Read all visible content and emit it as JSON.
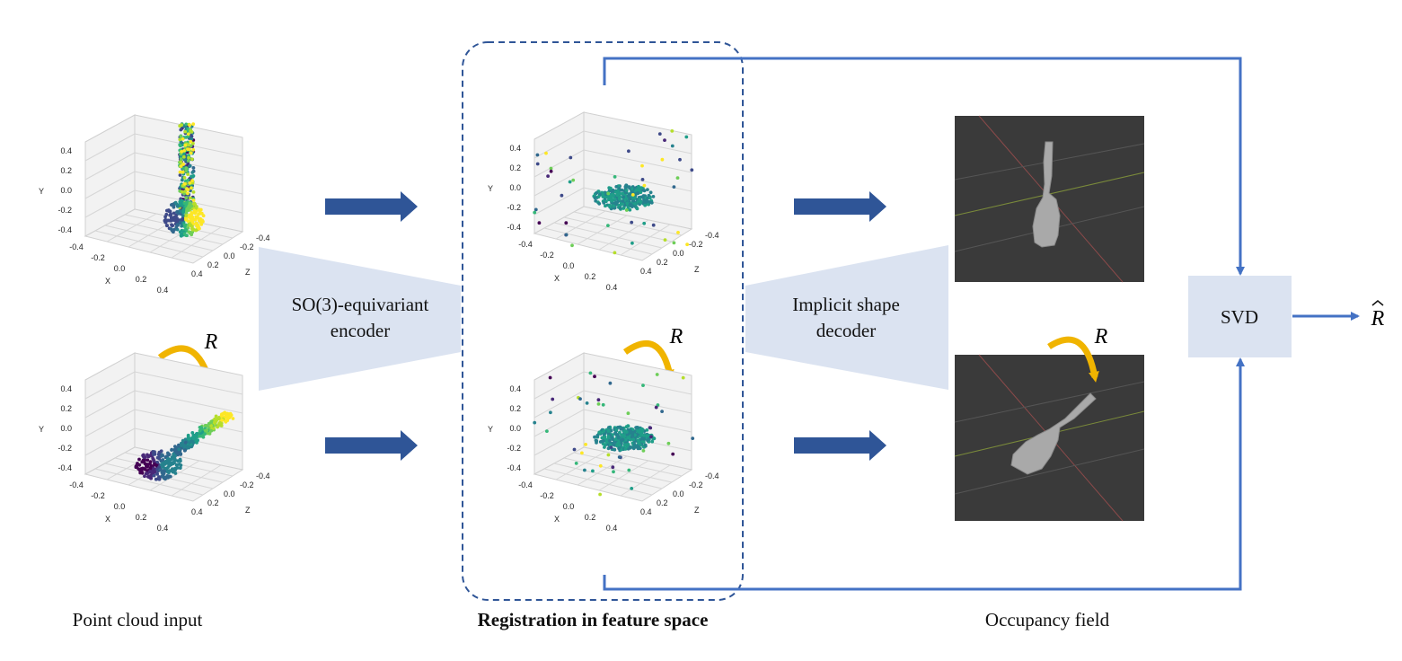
{
  "encoder": {
    "line1": "SO(3)-equivariant",
    "line2": "encoder"
  },
  "decoder": {
    "line1": "Implicit shape",
    "line2": "decoder"
  },
  "svd": {
    "label": "SVD"
  },
  "rotation_symbol": "R",
  "output_symbol": "R",
  "captions": {
    "input": "Point cloud input",
    "feature": "Registration in feature space",
    "occupancy": "Occupancy field"
  },
  "plot_ticks": {
    "y": [
      "0.4",
      "0.2",
      "0.0",
      "-0.2",
      "-0.4"
    ],
    "x": [
      "-0.4",
      "-0.2",
      "0.0",
      "0.2",
      "0.4"
    ],
    "z": [
      "-0.4",
      "-0.2",
      "0.0",
      "0.2",
      "0.4"
    ],
    "x_label": "X",
    "y_label": "Y",
    "z_label": "Z"
  },
  "colors": {
    "module_fill": "#dbe3f1",
    "flow_arrow": "#2f5597",
    "feedback_line": "#4472c4",
    "rotation_arrow": "#f0b400",
    "dashed_box": "#2f5597",
    "render_bg": "#3a3a3a",
    "mesh": "#a9a9a9"
  }
}
